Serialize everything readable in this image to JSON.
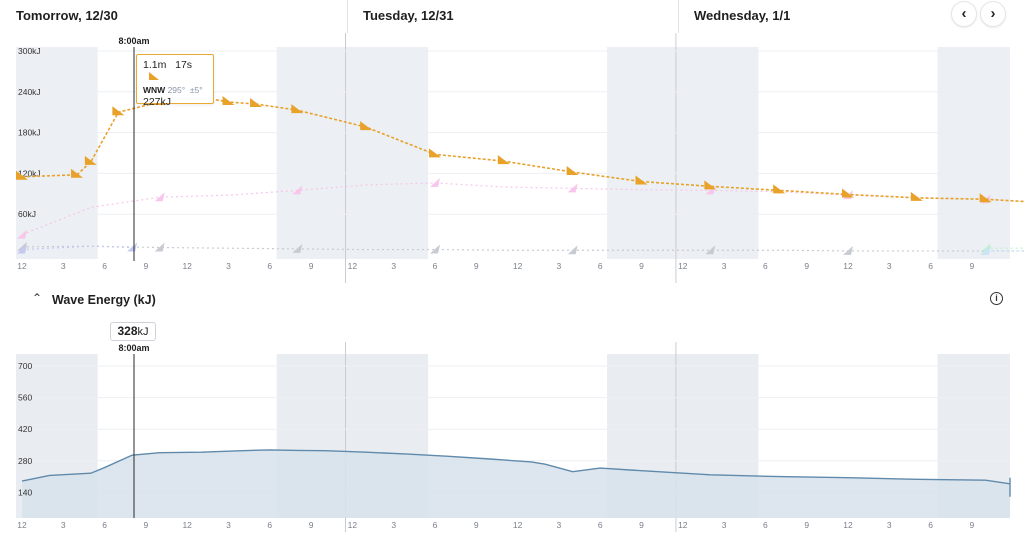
{
  "header": {
    "days": [
      "Tomorrow, 12/30",
      "Tuesday, 12/31",
      "Wednesday, 1/1"
    ],
    "prev_icon": "chevron-left-icon",
    "next_icon": "chevron-right-icon"
  },
  "swell_chart": {
    "cursor_time": "8:00am",
    "y_ticks": [
      "300kJ",
      "240kJ",
      "180kJ",
      "120kJ",
      "60kJ"
    ],
    "x_ticks": [
      "12",
      "3",
      "6",
      "9",
      "12",
      "3",
      "6",
      "9",
      "12",
      "3",
      "6",
      "9",
      "12",
      "3",
      "6",
      "9",
      "12",
      "3",
      "6",
      "9",
      "12",
      "3",
      "6",
      "9"
    ],
    "tooltip": {
      "height": "1.1m",
      "period": "17s",
      "direction": "WNW",
      "degrees": "295°",
      "spread": "±5°",
      "energy": "227kJ"
    },
    "series_colors": {
      "primary": "#e8a22a",
      "secondary": "#f7c6ea",
      "tertiary": "#bff0cf",
      "quaternary": "#c8cbd2",
      "fifth": "#c9e6f8",
      "sixth": "#c5c8f2"
    }
  },
  "energy_section": {
    "title": "Wave Energy (kJ)",
    "badge_value": "328",
    "badge_unit": "kJ",
    "cursor_time": "8:00am",
    "y_ticks": [
      "700",
      "560",
      "420",
      "280",
      "140"
    ],
    "x_ticks": [
      "12",
      "3",
      "6",
      "9",
      "12",
      "3",
      "6",
      "9",
      "12",
      "3",
      "6",
      "9",
      "12",
      "3",
      "6",
      "9",
      "12",
      "3",
      "6",
      "9",
      "12",
      "3",
      "6",
      "9"
    ],
    "colors": {
      "line": "#5f8aab",
      "fill": "#d7e2ec",
      "night": "#e9edf2"
    }
  },
  "chart_data": [
    {
      "type": "line",
      "title": "",
      "xlabel": "",
      "ylabel": "",
      "ylim": [
        0,
        300
      ],
      "x_unit": "hours from 12am 12/30",
      "series": [
        {
          "values": [
            [
              0,
              115
            ],
            [
              4,
              118
            ],
            [
              5,
              137
            ],
            [
              7,
              210
            ],
            [
              10,
              225
            ],
            [
              13,
              232
            ],
            [
              15,
              225
            ],
            [
              17,
              222
            ],
            [
              20,
              213
            ],
            [
              25,
              188
            ],
            [
              30,
              148
            ],
            [
              35,
              138
            ],
            [
              40,
              122
            ],
            [
              45,
              108
            ],
            [
              50,
              101
            ],
            [
              55,
              95
            ],
            [
              60,
              89
            ],
            [
              65,
              84
            ],
            [
              70,
              82
            ],
            [
              75,
              76
            ],
            [
              80,
              70
            ],
            [
              85,
              62
            ],
            [
              90,
              57
            ],
            [
              95,
              53
            ],
            [
              100,
              48
            ],
            [
              105,
              44
            ],
            [
              110,
              39
            ],
            [
              115,
              37
            ],
            [
              120,
              34
            ],
            [
              125,
              32
            ],
            [
              130,
              29
            ],
            [
              135,
              27
            ],
            [
              140,
              25
            ]
          ]
        },
        {
          "values": [
            [
              0,
              30
            ],
            [
              5,
              70
            ],
            [
              10,
              85
            ],
            [
              15,
              88
            ],
            [
              20,
              95
            ],
            [
              25,
              103
            ],
            [
              30,
              106
            ],
            [
              35,
              100
            ],
            [
              40,
              98
            ],
            [
              45,
              96
            ],
            [
              50,
              95
            ],
            [
              55,
              93
            ],
            [
              60,
              88
            ],
            [
              65,
              84
            ],
            [
              70,
              82
            ],
            [
              75,
              76
            ],
            [
              80,
              73
            ],
            [
              85,
              70
            ],
            [
              90,
              70
            ],
            [
              95,
              68
            ],
            [
              100,
              65
            ],
            [
              105,
              60
            ],
            [
              110,
              60
            ],
            [
              115,
              58
            ],
            [
              120,
              58
            ],
            [
              125,
              55
            ],
            [
              130,
              48
            ],
            [
              135,
              42
            ],
            [
              140,
              40
            ]
          ]
        },
        {
          "values": [
            [
              70,
              10
            ],
            [
              80,
              10
            ],
            [
              90,
              12
            ],
            [
              95,
              18
            ],
            [
              100,
              22
            ],
            [
              105,
              28
            ],
            [
              110,
              32
            ],
            [
              115,
              40
            ],
            [
              120,
              50
            ],
            [
              125,
              62
            ],
            [
              130,
              88
            ],
            [
              135,
              110
            ],
            [
              140,
              122
            ]
          ]
        },
        {
          "values": [
            [
              0,
              12
            ],
            [
              5,
              13
            ],
            [
              10,
              11
            ],
            [
              15,
              10
            ],
            [
              20,
              9
            ],
            [
              25,
              8
            ],
            [
              30,
              8
            ],
            [
              35,
              7
            ],
            [
              40,
              7
            ],
            [
              45,
              7
            ],
            [
              50,
              7
            ],
            [
              55,
              7
            ],
            [
              60,
              6
            ],
            [
              65,
              6
            ],
            [
              70,
              6
            ],
            [
              75,
              6
            ],
            [
              80,
              6
            ],
            [
              85,
              6
            ],
            [
              90,
              6
            ],
            [
              95,
              6
            ],
            [
              100,
              6
            ],
            [
              105,
              6
            ],
            [
              110,
              6
            ],
            [
              115,
              6
            ],
            [
              120,
              6
            ],
            [
              125,
              6
            ],
            [
              130,
              6
            ],
            [
              135,
              6
            ],
            [
              140,
              6
            ]
          ]
        },
        {
          "values": [
            [
              70,
              6
            ],
            [
              80,
              6
            ],
            [
              90,
              6
            ],
            [
              100,
              6
            ],
            [
              110,
              6
            ],
            [
              120,
              6
            ],
            [
              130,
              6
            ],
            [
              140,
              6
            ]
          ]
        },
        {
          "values": [
            [
              0,
              8
            ],
            [
              5,
              13
            ],
            [
              8,
              11
            ]
          ]
        }
      ]
    },
    {
      "type": "area",
      "title": "Wave Energy (kJ)",
      "xlabel": "",
      "ylabel": "kJ",
      "ylim": [
        0,
        700
      ],
      "x_unit": "hours from 12am 12/30",
      "values": [
        [
          0,
          190
        ],
        [
          2,
          215
        ],
        [
          5,
          225
        ],
        [
          6,
          250
        ],
        [
          8,
          305
        ],
        [
          10,
          316
        ],
        [
          13,
          318
        ],
        [
          16,
          325
        ],
        [
          18,
          328
        ],
        [
          20,
          326
        ],
        [
          22,
          325
        ],
        [
          25,
          318
        ],
        [
          28,
          310
        ],
        [
          31,
          300
        ],
        [
          34,
          288
        ],
        [
          37,
          275
        ],
        [
          38,
          265
        ],
        [
          40,
          232
        ],
        [
          42,
          248
        ],
        [
          45,
          236
        ],
        [
          50,
          218
        ],
        [
          55,
          210
        ],
        [
          60,
          205
        ],
        [
          65,
          198
        ],
        [
          70,
          194
        ],
        [
          75,
          178
        ],
        [
          78,
          168
        ],
        [
          81,
          150
        ],
        [
          84,
          148
        ],
        [
          90,
          146
        ],
        [
          95,
          143
        ],
        [
          100,
          135
        ],
        [
          105,
          132
        ],
        [
          110,
          125
        ],
        [
          115,
          123
        ],
        [
          120,
          122
        ],
        [
          125,
          121
        ],
        [
          130,
          122
        ],
        [
          135,
          130
        ],
        [
          140,
          140
        ],
        [
          145,
          160
        ],
        [
          150,
          178
        ],
        [
          153,
          182
        ],
        [
          158,
          195
        ],
        [
          163,
          205
        ]
      ]
    }
  ]
}
